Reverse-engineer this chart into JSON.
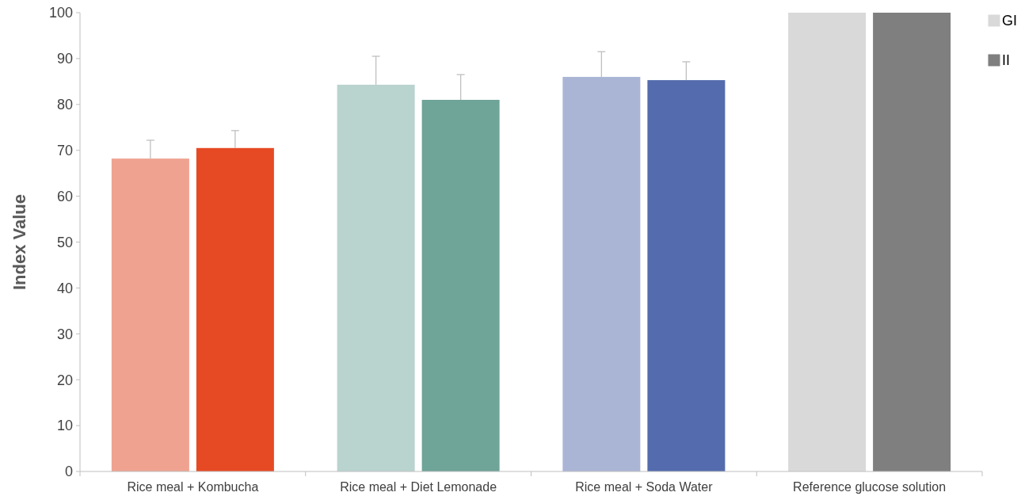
{
  "chart_data": {
    "type": "bar",
    "ylabel": "Index Value",
    "categories": [
      "Rice meal + Kombucha",
      "Rice meal + Diet Lemonade",
      "Rice meal + Soda Water",
      "Reference glucose solution"
    ],
    "series": [
      {
        "name": "GI",
        "color": "#d9d9d9",
        "colors": [
          "#f0a290",
          "#b9d3cf",
          "#aab5d6",
          "#d9d9d9"
        ],
        "values": [
          68.2,
          84.3,
          86.0,
          100
        ],
        "errors": [
          [
            68.2,
            72.2
          ],
          [
            84.3,
            90.5
          ],
          [
            86.0,
            91.5
          ],
          null
        ]
      },
      {
        "name": "II",
        "color": "#7f7f7f",
        "colors": [
          "#e64a25",
          "#6fa498",
          "#546cad",
          "#7f7f7f"
        ],
        "values": [
          70.5,
          81.0,
          85.3,
          100
        ],
        "errors": [
          [
            70.5,
            74.3
          ],
          [
            81.0,
            86.5
          ],
          [
            85.3,
            89.3
          ],
          null
        ]
      }
    ],
    "ylim": [
      0,
      100
    ],
    "yticks": [
      0,
      10,
      20,
      30,
      40,
      50,
      60,
      70,
      80,
      90,
      100
    ],
    "grid": false,
    "legend": "top right"
  }
}
